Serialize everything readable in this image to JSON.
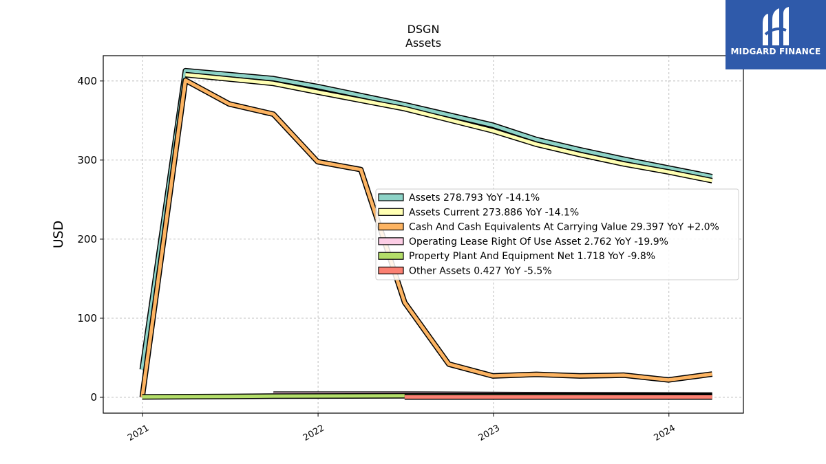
{
  "brand": {
    "name": "MIDGARD FINANCE",
    "bg_color": "#2f5aaa"
  },
  "chart_data": {
    "type": "area",
    "title": "DSGN",
    "subtitle": "Assets",
    "xlabel": "",
    "ylabel": "USD",
    "ylim": [
      -20,
      432
    ],
    "xlim": [
      "2020-10-11",
      "2024-06-04"
    ],
    "yticks": [
      0,
      100,
      200,
      300,
      400
    ],
    "xticks": [
      "2021",
      "2022",
      "2023",
      "2024"
    ],
    "grid": true,
    "legend_position": "center-right",
    "series": [
      {
        "name": "Assets",
        "legend": "Assets  278.793 YoY -14.1%",
        "color": "#8dd3c7",
        "points": [
          [
            "2020-12-31",
            35
          ],
          [
            "2021-03-31",
            413
          ],
          [
            "2021-09-30",
            403
          ],
          [
            "2021-12-31",
            393
          ],
          [
            "2022-06-30",
            370
          ],
          [
            "2022-12-31",
            344
          ],
          [
            "2023-03-31",
            326
          ],
          [
            "2023-06-30",
            313
          ],
          [
            "2023-09-30",
            301
          ],
          [
            "2023-12-31",
            290
          ],
          [
            "2024-03-31",
            279
          ]
        ]
      },
      {
        "name": "Assets Current",
        "legend": "Assets Current  273.886 YoY -14.1%",
        "color": "#ffffb3",
        "points": [
          [
            "2021-03-31",
            408
          ],
          [
            "2021-09-30",
            397
          ],
          [
            "2021-12-31",
            386
          ],
          [
            "2022-06-30",
            365
          ],
          [
            "2022-12-31",
            337
          ],
          [
            "2023-03-31",
            320
          ],
          [
            "2023-06-30",
            307
          ],
          [
            "2023-09-30",
            295
          ],
          [
            "2023-12-31",
            285
          ],
          [
            "2024-03-31",
            274
          ]
        ]
      },
      {
        "name": "Cash And Cash Equivalents At Carrying Value",
        "legend": "Cash And Cash Equivalents At Carrying Value  29.397 YoY +2.0%",
        "color": "#fdb462",
        "points": [
          [
            "2020-12-31",
            0
          ],
          [
            "2021-03-31",
            401
          ],
          [
            "2021-06-30",
            371
          ],
          [
            "2021-09-30",
            358
          ],
          [
            "2021-12-31",
            298
          ],
          [
            "2022-03-31",
            288
          ],
          [
            "2022-06-30",
            120
          ],
          [
            "2022-09-30",
            42
          ],
          [
            "2022-12-31",
            27
          ],
          [
            "2023-03-31",
            29
          ],
          [
            "2023-06-30",
            27
          ],
          [
            "2023-09-30",
            28
          ],
          [
            "2023-12-31",
            22
          ],
          [
            "2024-03-31",
            29.4
          ]
        ]
      },
      {
        "name": "Operating Lease Right Of Use Asset",
        "legend": "Operating Lease Right Of Use Asset  2.762 YoY -19.9%",
        "color": "#fccde5",
        "points": [
          [
            "2021-09-30",
            4
          ],
          [
            "2022-06-30",
            4
          ],
          [
            "2023-06-30",
            3.3
          ],
          [
            "2024-03-31",
            2.76
          ]
        ]
      },
      {
        "name": "Property Plant And Equipment Net",
        "legend": "Property Plant And Equipment Net  1.718 YoY -9.8%",
        "color": "#b3de69",
        "points": [
          [
            "2020-12-31",
            0.5
          ],
          [
            "2021-06-30",
            1
          ],
          [
            "2021-09-30",
            1.5
          ],
          [
            "2022-06-30",
            2
          ],
          [
            "2023-06-30",
            1.9
          ],
          [
            "2024-03-31",
            1.72
          ]
        ]
      },
      {
        "name": "Other Assets",
        "legend": "Other Assets  0.427 YoY -5.5%",
        "color": "#fb8072",
        "points": [
          [
            "2022-06-30",
            0.45
          ],
          [
            "2024-03-31",
            0.43
          ]
        ]
      }
    ]
  }
}
